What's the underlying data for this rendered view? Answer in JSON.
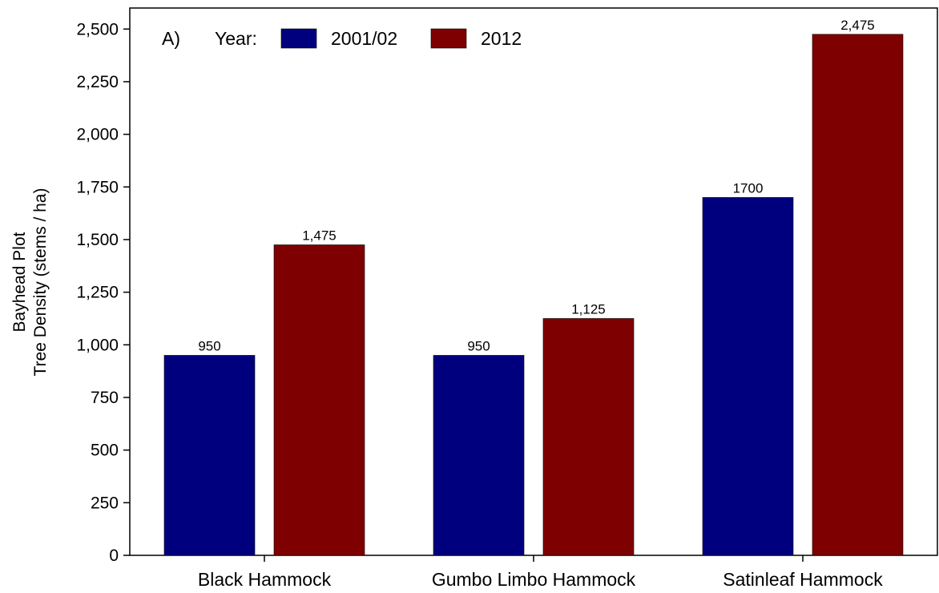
{
  "chart_data": {
    "type": "bar",
    "panel_label": "A)",
    "legend_title": "Year:",
    "ylabel": [
      "Bayhead Plot",
      "Tree Density (stems / ha)"
    ],
    "xlabel": "",
    "ylim": [
      0,
      2600
    ],
    "yticks": [
      0,
      250,
      500,
      750,
      1000,
      1250,
      1500,
      1750,
      2000,
      2250,
      2500
    ],
    "ytick_labels": [
      "0",
      "250",
      "500",
      "750",
      "1,000",
      "1,250",
      "1,500",
      "1,750",
      "2,000",
      "2,250",
      "2,500"
    ],
    "categories": [
      "Black Hammock",
      "Gumbo Limbo Hammock",
      "Satinleaf Hammock"
    ],
    "series": [
      {
        "name": "2001/02",
        "color": "#00007f",
        "values": [
          950,
          950,
          1700
        ],
        "labels": [
          "950",
          "950",
          "1700"
        ]
      },
      {
        "name": "2012",
        "color": "#7f0000",
        "values": [
          1475,
          1125,
          2475
        ],
        "labels": [
          "1,475",
          "1,125",
          "2,475"
        ]
      }
    ],
    "legend_position": "top-left",
    "grid": false
  }
}
